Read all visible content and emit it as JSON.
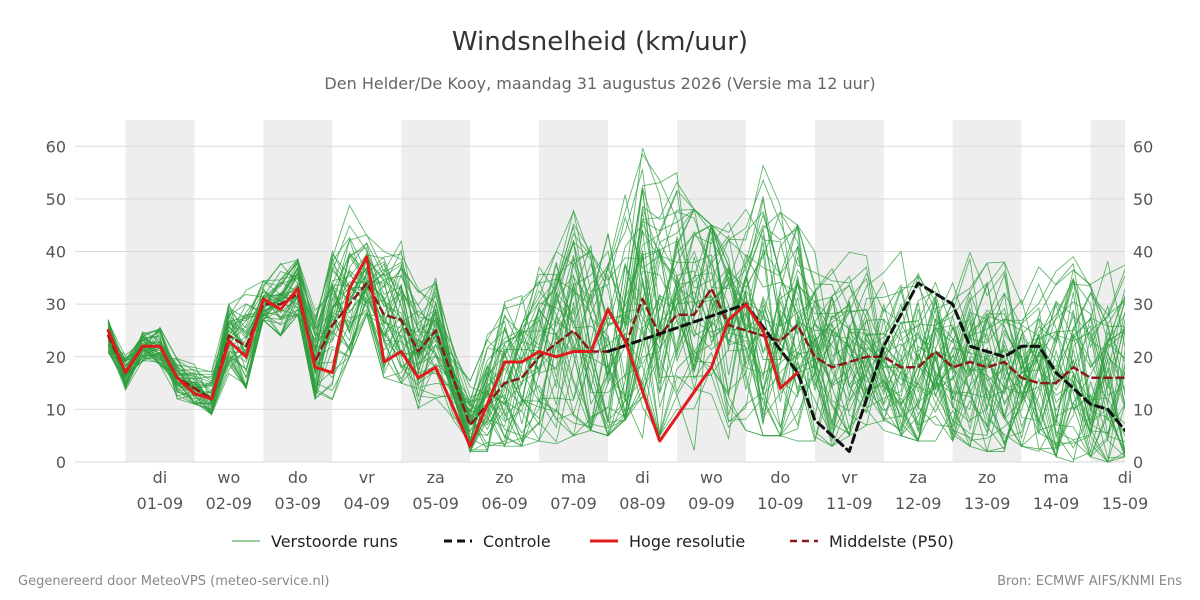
{
  "chart_data": {
    "type": "line",
    "title": "Windsnelheid (km/uur)",
    "subtitle": "Den Helder/De Kooy, maandag 31 augustus 2026 (Versie ma 12 uur)",
    "xlabel": "",
    "ylabel": "",
    "ylim": [
      0,
      65
    ],
    "yticks": [
      0,
      10,
      20,
      30,
      40,
      50,
      60
    ],
    "grid": true,
    "x_ticks": [
      {
        "day": "di",
        "date": "01-09"
      },
      {
        "day": "wo",
        "date": "02-09"
      },
      {
        "day": "do",
        "date": "03-09"
      },
      {
        "day": "vr",
        "date": "04-09"
      },
      {
        "day": "za",
        "date": "05-09"
      },
      {
        "day": "zo",
        "date": "06-09"
      },
      {
        "day": "ma",
        "date": "07-09"
      },
      {
        "day": "di",
        "date": "08-09"
      },
      {
        "day": "wo",
        "date": "09-09"
      },
      {
        "day": "do",
        "date": "10-09"
      },
      {
        "day": "vr",
        "date": "11-09"
      },
      {
        "day": "za",
        "date": "12-09"
      },
      {
        "day": "zo",
        "date": "13-09"
      },
      {
        "day": "ma",
        "date": "14-09"
      },
      {
        "day": "di",
        "date": "15-09"
      }
    ],
    "night_shading": [
      [
        "2026-09-01 00:00",
        "2026-09-02 00:00"
      ],
      [
        "2026-09-03 00:00",
        "2026-09-04 00:00"
      ],
      [
        "2026-09-05 00:00",
        "2026-09-06 00:00"
      ],
      [
        "2026-09-07 00:00",
        "2026-09-08 00:00"
      ],
      [
        "2026-09-09 00:00",
        "2026-09-10 00:00"
      ],
      [
        "2026-09-11 00:00",
        "2026-09-12 00:00"
      ],
      [
        "2026-09-13 00:00",
        "2026-09-14 00:00"
      ],
      [
        "2026-09-15 00:00",
        "2026-09-15 12:00"
      ]
    ],
    "x_range": [
      "2026-08-31 12:00",
      "2026-09-15 12:00"
    ],
    "legend": {
      "position": "bottom",
      "entries": [
        "Verstoorde runs",
        "Controle",
        "Hoge resolutie",
        "Middelste (P50)"
      ]
    },
    "series": [
      {
        "name": "Controle",
        "color": "#111111",
        "style": "dashed",
        "points": [
          [
            "2026-09-08 00:00",
            21
          ],
          [
            "2026-09-10 00:00",
            30
          ],
          [
            "2026-09-10 18:00",
            17
          ],
          [
            "2026-09-11 00:00",
            8
          ],
          [
            "2026-09-11 12:00",
            2
          ],
          [
            "2026-09-12 00:00",
            22
          ],
          [
            "2026-09-12 12:00",
            34
          ],
          [
            "2026-09-13 00:00",
            30
          ],
          [
            "2026-09-13 06:00",
            22
          ],
          [
            "2026-09-13 18:00",
            20
          ],
          [
            "2026-09-14 00:00",
            22
          ],
          [
            "2026-09-14 06:00",
            22
          ],
          [
            "2026-09-14 12:00",
            17
          ],
          [
            "2026-09-15 00:00",
            11
          ],
          [
            "2026-09-15 06:00",
            10
          ],
          [
            "2026-09-15 12:00",
            6
          ],
          [
            "2026-09-15 18:00",
            9
          ],
          [
            "2026-09-16 00:00",
            9
          ]
        ]
      },
      {
        "name": "Hoge resolutie",
        "color": "#e01b1b",
        "style": "solid",
        "points": [
          [
            "2026-08-31 18:00",
            25
          ],
          [
            "2026-09-01 00:00",
            17
          ],
          [
            "2026-09-01 06:00",
            22
          ],
          [
            "2026-09-01 12:00",
            22
          ],
          [
            "2026-09-01 18:00",
            16
          ],
          [
            "2026-09-02 00:00",
            13
          ],
          [
            "2026-09-02 06:00",
            12
          ],
          [
            "2026-09-02 12:00",
            23
          ],
          [
            "2026-09-02 18:00",
            20
          ],
          [
            "2026-09-03 00:00",
            31
          ],
          [
            "2026-09-03 06:00",
            29
          ],
          [
            "2026-09-03 12:00",
            33
          ],
          [
            "2026-09-03 18:00",
            18
          ],
          [
            "2026-09-04 00:00",
            17
          ],
          [
            "2026-09-04 06:00",
            33
          ],
          [
            "2026-09-04 12:00",
            39
          ],
          [
            "2026-09-04 18:00",
            19
          ],
          [
            "2026-09-05 00:00",
            21
          ],
          [
            "2026-09-05 06:00",
            16
          ],
          [
            "2026-09-05 12:00",
            18
          ],
          [
            "2026-09-06 00:00",
            3
          ],
          [
            "2026-09-06 12:00",
            19
          ],
          [
            "2026-09-06 18:00",
            19
          ],
          [
            "2026-09-07 00:00",
            21
          ],
          [
            "2026-09-07 06:00",
            20
          ],
          [
            "2026-09-07 12:00",
            21
          ],
          [
            "2026-09-07 18:00",
            21
          ],
          [
            "2026-09-08 00:00",
            29
          ],
          [
            "2026-09-08 06:00",
            23
          ],
          [
            "2026-09-08 18:00",
            4
          ],
          [
            "2026-09-09 12:00",
            18
          ],
          [
            "2026-09-09 18:00",
            27
          ],
          [
            "2026-09-10 00:00",
            30
          ],
          [
            "2026-09-10 06:00",
            25
          ],
          [
            "2026-09-10 12:00",
            14
          ],
          [
            "2026-09-10 18:00",
            17
          ]
        ]
      },
      {
        "name": "Middelste (P50)",
        "color": "#8b1a1a",
        "style": "dashed",
        "points": [
          [
            "2026-08-31 18:00",
            24
          ],
          [
            "2026-09-01 00:00",
            17
          ],
          [
            "2026-09-01 06:00",
            22
          ],
          [
            "2026-09-01 12:00",
            22
          ],
          [
            "2026-09-01 18:00",
            16
          ],
          [
            "2026-09-02 00:00",
            14
          ],
          [
            "2026-09-02 06:00",
            12
          ],
          [
            "2026-09-02 12:00",
            24
          ],
          [
            "2026-09-02 18:00",
            22
          ],
          [
            "2026-09-03 00:00",
            30
          ],
          [
            "2026-09-03 06:00",
            30
          ],
          [
            "2026-09-03 12:00",
            32
          ],
          [
            "2026-09-03 18:00",
            19
          ],
          [
            "2026-09-04 00:00",
            26
          ],
          [
            "2026-09-04 06:00",
            30
          ],
          [
            "2026-09-04 12:00",
            34
          ],
          [
            "2026-09-04 18:00",
            28
          ],
          [
            "2026-09-05 00:00",
            27
          ],
          [
            "2026-09-05 06:00",
            21
          ],
          [
            "2026-09-05 12:00",
            25
          ],
          [
            "2026-09-06 00:00",
            7
          ],
          [
            "2026-09-06 12:00",
            15
          ],
          [
            "2026-09-06 18:00",
            16
          ],
          [
            "2026-09-07 00:00",
            20
          ],
          [
            "2026-09-07 12:00",
            25
          ],
          [
            "2026-09-07 18:00",
            21
          ],
          [
            "2026-09-08 00:00",
            21
          ],
          [
            "2026-09-08 06:00",
            22
          ],
          [
            "2026-09-08 12:00",
            31
          ],
          [
            "2026-09-08 18:00",
            24
          ],
          [
            "2026-09-09 00:00",
            28
          ],
          [
            "2026-09-09 06:00",
            28
          ],
          [
            "2026-09-09 12:00",
            33
          ],
          [
            "2026-09-09 18:00",
            26
          ],
          [
            "2026-09-10 00:00",
            25
          ],
          [
            "2026-09-10 12:00",
            23
          ],
          [
            "2026-09-10 18:00",
            26
          ],
          [
            "2026-09-11 00:00",
            20
          ],
          [
            "2026-09-11 06:00",
            18
          ],
          [
            "2026-09-11 12:00",
            19
          ],
          [
            "2026-09-11 18:00",
            20
          ],
          [
            "2026-09-12 00:00",
            20
          ],
          [
            "2026-09-12 06:00",
            18
          ],
          [
            "2026-09-12 12:00",
            18
          ],
          [
            "2026-09-12 18:00",
            21
          ],
          [
            "2026-09-13 00:00",
            18
          ],
          [
            "2026-09-13 06:00",
            19
          ],
          [
            "2026-09-13 12:00",
            18
          ],
          [
            "2026-09-13 18:00",
            19
          ],
          [
            "2026-09-14 00:00",
            16
          ],
          [
            "2026-09-14 06:00",
            15
          ],
          [
            "2026-09-14 12:00",
            15
          ],
          [
            "2026-09-14 18:00",
            18
          ],
          [
            "2026-09-15 00:00",
            16
          ],
          [
            "2026-09-15 06:00",
            16
          ],
          [
            "2026-09-15 12:00",
            16
          ],
          [
            "2026-09-15 18:00",
            19
          ]
        ]
      }
    ],
    "ensemble": {
      "name": "Verstoorde runs",
      "color": "#2e9e3e",
      "members": 50,
      "start": "2026-08-31 18:00",
      "end": "2026-09-16 00:00",
      "step_hours": 6,
      "spread_min": [
        20,
        11,
        18,
        18,
        12,
        11,
        9,
        15,
        14,
        27,
        24,
        28,
        12,
        10,
        20,
        28,
        16,
        15,
        10,
        11,
        5,
        2,
        2,
        3,
        3,
        4,
        3,
        5,
        6,
        5,
        8,
        4,
        5,
        10,
        2,
        6,
        4,
        6,
        5,
        5,
        4,
        4,
        3,
        5,
        7,
        6,
        5,
        4,
        4,
        4,
        3,
        2,
        2,
        3,
        2,
        1,
        0,
        1,
        0,
        1,
        1
      ],
      "spread_max": [
        31,
        22,
        28,
        30,
        20,
        19,
        18,
        30,
        37,
        40,
        40,
        42,
        30,
        40,
        51,
        44,
        42,
        43,
        36,
        35,
        22,
        20,
        30,
        36,
        38,
        39,
        40,
        49,
        50,
        52,
        63,
        62,
        62,
        55,
        48,
        45,
        47,
        48,
        60,
        53,
        45,
        40,
        46,
        42,
        40,
        36,
        40,
        41,
        40,
        40,
        40,
        38,
        38,
        36,
        43,
        40,
        39,
        38,
        46,
        45,
        46
      ]
    }
  },
  "footer": {
    "left": "Gegenereerd door MeteoVPS (meteo-service.nl)",
    "right": "Bron: ECMWF AIFS/KNMI Ens"
  }
}
